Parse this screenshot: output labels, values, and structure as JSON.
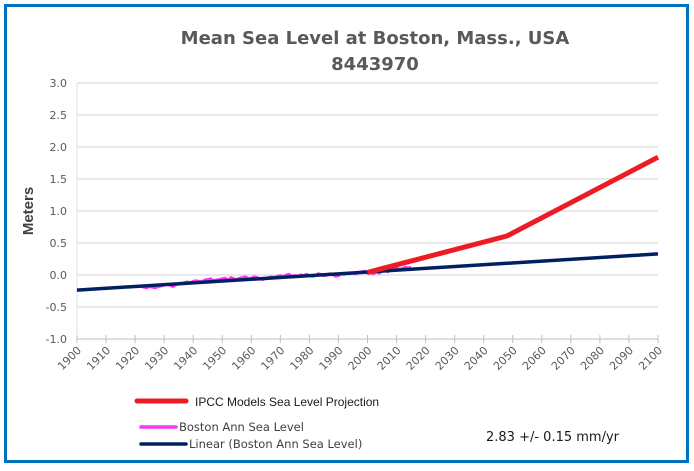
{
  "chart_data": {
    "type": "line",
    "title": "Mean Sea Level at Boston, Mass., USA",
    "subtitle": "8443970",
    "xlabel": "",
    "ylabel": "Meters",
    "xlim": [
      1900,
      2100
    ],
    "ylim": [
      -1.0,
      3.0
    ],
    "x_ticks": [
      "1900",
      "1910",
      "1920",
      "1930",
      "1940",
      "1950",
      "1960",
      "1970",
      "1980",
      "1990",
      "2000",
      "2010",
      "2020",
      "2030",
      "2040",
      "2050",
      "2060",
      "2070",
      "2080",
      "2090",
      "2100"
    ],
    "y_ticks": [
      "3.0",
      "2.5",
      "2.0",
      "1.5",
      "1.0",
      "0.5",
      "0.0",
      "-0.5",
      "-1.0"
    ],
    "grid": true,
    "series": [
      {
        "name": "IPCC Models Sea Level Projection",
        "color": "#ED1C24",
        "x": [
          2000,
          2048,
          2100
        ],
        "y": [
          0.04,
          0.61,
          1.84
        ]
      },
      {
        "name": "Boston Ann Sea Level",
        "color": "#FF33FF",
        "x": [
          1921,
          1922,
          1923,
          1924,
          1925,
          1926,
          1927,
          1928,
          1929,
          1930,
          1931,
          1932,
          1933,
          1934,
          1935,
          1936,
          1937,
          1938,
          1939,
          1940,
          1941,
          1942,
          1943,
          1944,
          1945,
          1946,
          1947,
          1948,
          1949,
          1950,
          1951,
          1952,
          1953,
          1954,
          1955,
          1956,
          1957,
          1958,
          1959,
          1960,
          1961,
          1962,
          1963,
          1964,
          1965,
          1966,
          1967,
          1968,
          1969,
          1970,
          1971,
          1972,
          1973,
          1974,
          1975,
          1976,
          1977,
          1978,
          1979,
          1980,
          1981,
          1982,
          1983,
          1984,
          1985,
          1986,
          1987,
          1988,
          1989,
          1990,
          1991,
          1992,
          1993,
          1994,
          1995,
          1996,
          1997,
          1998,
          1999,
          2000,
          2001,
          2002,
          2003,
          2004,
          2005,
          2006,
          2007,
          2008,
          2009,
          2010,
          2011,
          2012,
          2013,
          2014,
          2015
        ],
        "y": [
          -0.18,
          -0.17,
          -0.19,
          -0.2,
          -0.18,
          -0.19,
          -0.2,
          -0.18,
          -0.17,
          -0.16,
          -0.14,
          -0.16,
          -0.18,
          -0.15,
          -0.14,
          -0.13,
          -0.12,
          -0.11,
          -0.12,
          -0.1,
          -0.09,
          -0.1,
          -0.11,
          -0.08,
          -0.07,
          -0.06,
          -0.09,
          -0.08,
          -0.07,
          -0.06,
          -0.05,
          -0.08,
          -0.04,
          -0.06,
          -0.07,
          -0.05,
          -0.04,
          -0.03,
          -0.06,
          -0.05,
          -0.03,
          -0.04,
          -0.06,
          -0.07,
          -0.05,
          -0.04,
          -0.03,
          -0.04,
          -0.02,
          -0.01,
          -0.03,
          0.0,
          0.01,
          -0.02,
          -0.01,
          -0.02,
          0.0,
          -0.01,
          0.01,
          -0.01,
          -0.02,
          -0.01,
          0.02,
          0.01,
          -0.01,
          0.0,
          0.02,
          0.01,
          -0.02,
          -0.01,
          0.02,
          0.01,
          0.03,
          0.02,
          0.03,
          0.02,
          0.04,
          0.05,
          0.06,
          0.03,
          0.04,
          0.02,
          0.05,
          0.03,
          0.06,
          0.07,
          0.05,
          0.08,
          0.09,
          0.11,
          0.09,
          0.1,
          0.12,
          0.11,
          0.12
        ]
      },
      {
        "name": "Linear (Boston Ann Sea Level)",
        "color": "#002060",
        "x": [
          1900,
          2100
        ],
        "y": [
          -0.236,
          0.33
        ]
      }
    ],
    "legend": "bottom",
    "annotations": [
      "2.83 +/- 0.15 mm/yr"
    ]
  }
}
